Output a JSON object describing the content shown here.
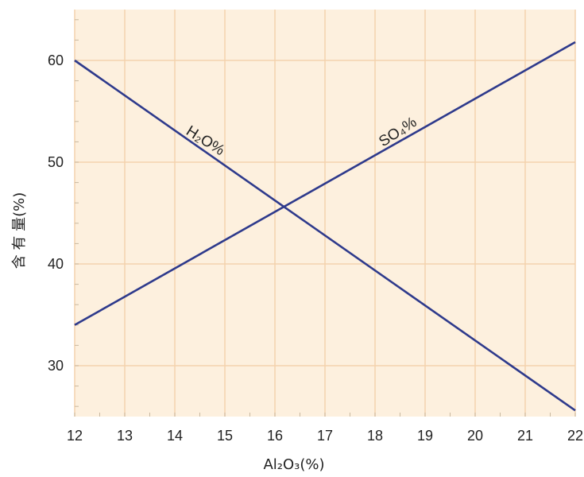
{
  "chart_data": {
    "type": "line",
    "xlabel": "Al₂O₃(%)",
    "ylabel": "含 有 量(%)",
    "xlim": [
      12,
      22
    ],
    "ylim": [
      25,
      65
    ],
    "x_ticks": [
      "12",
      "13",
      "14",
      "15",
      "16",
      "17",
      "18",
      "19",
      "20",
      "21",
      "22"
    ],
    "y_ticks": [
      "30",
      "40",
      "50",
      "60"
    ],
    "grid": true,
    "background_color": "#fdf0de",
    "grid_color": "#f3d2ad",
    "line_color": "#2e3a8c",
    "series": [
      {
        "name": "H₂O%",
        "x": [
          12,
          22
        ],
        "y": [
          60,
          25.6
        ]
      },
      {
        "name": "SO₄%",
        "x": [
          12,
          22
        ],
        "y": [
          34,
          61.8
        ]
      }
    ]
  }
}
